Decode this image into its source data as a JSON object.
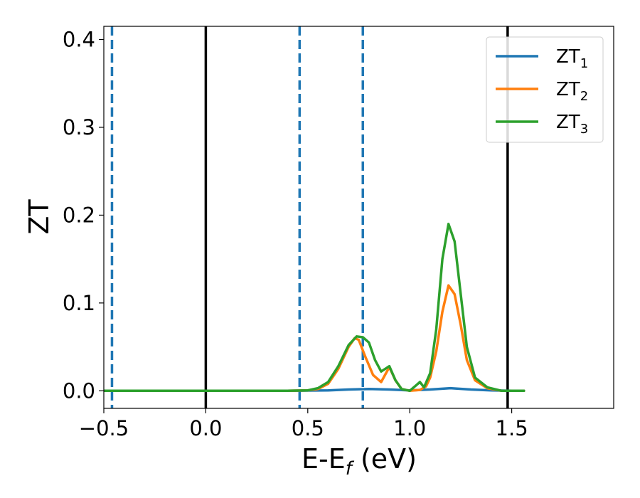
{
  "chart_data": {
    "type": "line",
    "xlabel": "E-E",
    "xlabel_sub": "f",
    "xlabel_unit": " (eV)",
    "ylabel": "ZT",
    "xlim": [
      -0.5,
      2.0
    ],
    "ylim": [
      -0.02,
      0.415
    ],
    "x_ticks": [
      {
        "value": -0.5,
        "label": "−0.5"
      },
      {
        "value": 0.0,
        "label": "0.0"
      },
      {
        "value": 0.5,
        "label": "0.5"
      },
      {
        "value": 1.0,
        "label": "1.0"
      },
      {
        "value": 1.5,
        "label": "1.5"
      }
    ],
    "y_ticks": [
      {
        "value": 0.0,
        "label": "0.0"
      },
      {
        "value": 0.1,
        "label": "0.1"
      },
      {
        "value": 0.2,
        "label": "0.2"
      },
      {
        "value": 0.3,
        "label": "0.3"
      },
      {
        "value": 0.4,
        "label": "0.4"
      }
    ],
    "legend_position": "top-right",
    "grid": false,
    "series": [
      {
        "name": "ZT",
        "name_sub": "1",
        "color": "#1f77b4",
        "x": [
          -0.5,
          0.4,
          0.6,
          0.7,
          0.8,
          0.9,
          1.0,
          1.1,
          1.2,
          1.3,
          1.4,
          1.5,
          1.56
        ],
        "y": [
          0.0,
          0.0,
          0.0005,
          0.0015,
          0.002,
          0.0015,
          0.0005,
          0.0015,
          0.003,
          0.0015,
          0.0005,
          0.0,
          0.0
        ]
      },
      {
        "name": "ZT",
        "name_sub": "2",
        "color": "#ff7f0e",
        "x": [
          -0.5,
          0.4,
          0.5,
          0.55,
          0.6,
          0.65,
          0.7,
          0.73,
          0.75,
          0.78,
          0.82,
          0.86,
          0.9,
          0.93,
          0.96,
          1.0,
          1.05,
          1.08,
          1.1,
          1.13,
          1.16,
          1.19,
          1.22,
          1.25,
          1.28,
          1.32,
          1.38,
          1.45,
          1.56
        ],
        "y": [
          0.0,
          0.0,
          0.0005,
          0.002,
          0.008,
          0.025,
          0.05,
          0.06,
          0.058,
          0.04,
          0.018,
          0.01,
          0.027,
          0.012,
          0.002,
          0.0,
          0.001,
          0.005,
          0.015,
          0.045,
          0.09,
          0.12,
          0.11,
          0.075,
          0.035,
          0.012,
          0.003,
          0.0,
          0.0
        ]
      },
      {
        "name": "ZT",
        "name_sub": "3",
        "color": "#2ca02c",
        "x": [
          -0.5,
          0.4,
          0.5,
          0.55,
          0.6,
          0.65,
          0.7,
          0.74,
          0.77,
          0.8,
          0.83,
          0.86,
          0.9,
          0.93,
          0.96,
          1.0,
          1.03,
          1.05,
          1.07,
          1.1,
          1.13,
          1.16,
          1.19,
          1.22,
          1.25,
          1.28,
          1.32,
          1.38,
          1.45,
          1.56
        ],
        "y": [
          0.0,
          0.0,
          0.0005,
          0.003,
          0.01,
          0.028,
          0.052,
          0.062,
          0.061,
          0.055,
          0.035,
          0.022,
          0.028,
          0.012,
          0.002,
          0.0,
          0.006,
          0.01,
          0.004,
          0.02,
          0.07,
          0.15,
          0.19,
          0.17,
          0.11,
          0.05,
          0.015,
          0.004,
          0.0,
          0.0
        ]
      }
    ],
    "reference_lines": [
      {
        "x": -0.46,
        "style": "dashed",
        "color": "#1f77b4"
      },
      {
        "x": 0.0,
        "style": "solid",
        "color": "#000000"
      },
      {
        "x": 0.46,
        "style": "dashed",
        "color": "#1f77b4"
      },
      {
        "x": 0.77,
        "style": "dashed",
        "color": "#1f77b4"
      },
      {
        "x": 1.48,
        "style": "solid",
        "color": "#000000"
      }
    ]
  }
}
